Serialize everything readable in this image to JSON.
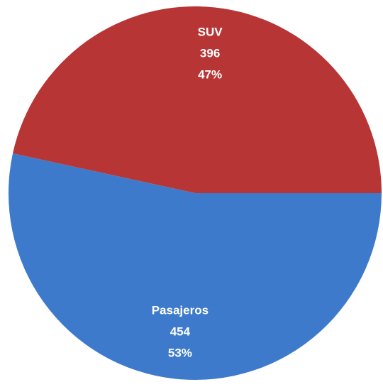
{
  "chart_data": {
    "type": "pie",
    "categories": [
      "SUV",
      "Pasajeros"
    ],
    "values": [
      396,
      454
    ],
    "percent_labels": [
      "47%",
      "53%"
    ],
    "colors": [
      "#b83536",
      "#3d7acb"
    ]
  }
}
